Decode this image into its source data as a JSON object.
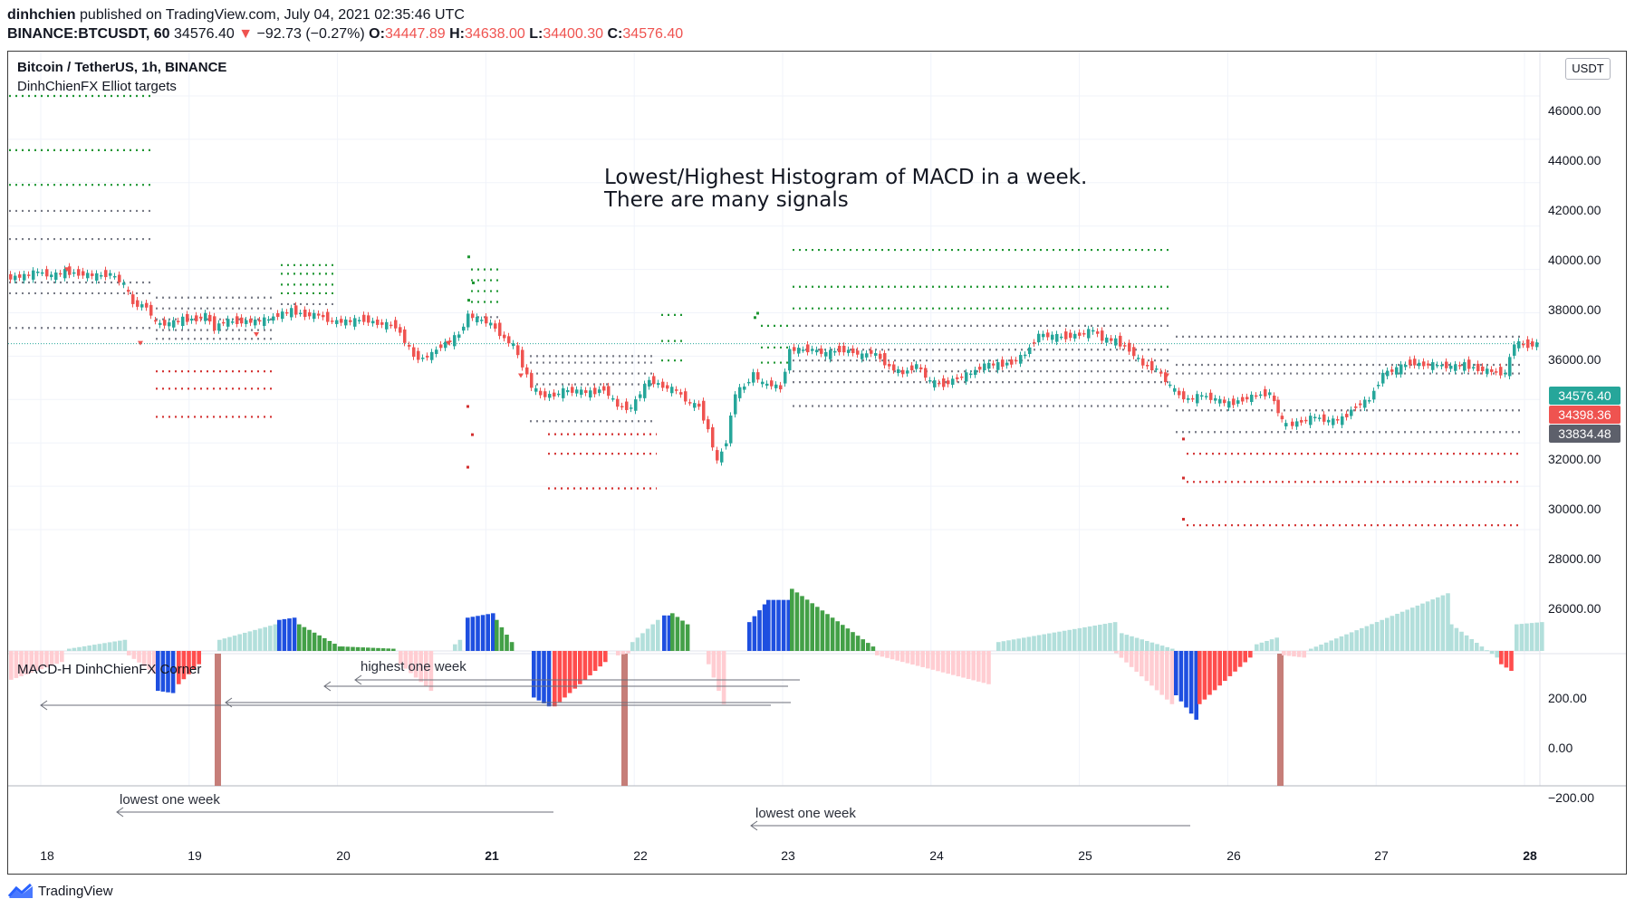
{
  "header": {
    "author": "dinhchien",
    "published": "published on TradingView.com, July 04, 2021 02:35:46 UTC",
    "symbol": "BINANCE:BTCUSDT, 60",
    "last": "34576.40",
    "change": "−92.73 (−0.27%)",
    "o_label": "O:",
    "o": "34447.89",
    "h_label": "H:",
    "h": "34638.00",
    "l_label": "L:",
    "l": "34400.30",
    "c_label": "C:",
    "c": "34576.40"
  },
  "legend": {
    "title": "Bitcoin / TetherUS, 1h, BINANCE",
    "indicator": "DinhChienFX Elliot targets"
  },
  "note": {
    "line1": "Lowest/Highest Histogram of MACD in a week.",
    "line2": "There are many signals"
  },
  "macd_label": "MACD-H DinhChienFX Corner",
  "annotations": {
    "highest": "highest one week",
    "lowest1": "lowest one week",
    "lowest2": "lowest one week"
  },
  "currency_button": "USDT",
  "price_axis": [
    "46000.00",
    "44000.00",
    "42000.00",
    "40000.00",
    "38000.00",
    "36000.00",
    "32000.00",
    "30000.00",
    "28000.00",
    "26000.00"
  ],
  "price_tags": {
    "last": "34576.40",
    "mid": "34398.36",
    "low": "33834.48",
    "last_color": "#26a69a",
    "mid_color": "#ef5350",
    "low_color": "#5d606b"
  },
  "macd_axis": [
    "200.00",
    "0.00",
    "−200.00"
  ],
  "time_axis": [
    "18",
    "19",
    "20",
    "21",
    "22",
    "23",
    "24",
    "25",
    "26",
    "27",
    "28"
  ],
  "brand": "TradingView",
  "colors": {
    "up": "#26a69a",
    "down": "#ef5350",
    "target_green": "#1e9632",
    "target_red": "#d32f2f",
    "target_gray": "#787b86",
    "macd_strong_green": "#43a047",
    "macd_light_green": "#b2dfdb",
    "macd_strong_red": "#ff4d4d",
    "macd_light_red": "#ffcdd2",
    "macd_extreme": "#1e4fe0",
    "week_marker": "#c0706a"
  }
}
